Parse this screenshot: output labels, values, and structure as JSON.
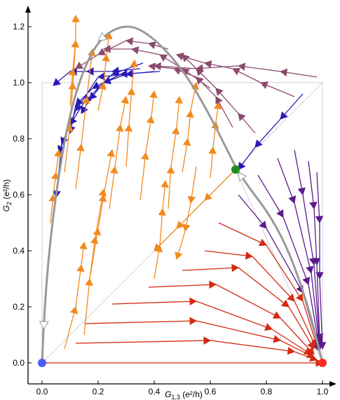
{
  "chart_data": {
    "type": "line",
    "subtype": "flow-diagram",
    "title": "",
    "xlabel": {
      "main": "G",
      "sub": "1,3",
      "unit": " (e²/h)"
    },
    "ylabel": {
      "main": "G",
      "sub": "2",
      "unit": " (e²/h)"
    },
    "xlim": [
      -0.05,
      1.05
    ],
    "ylim": [
      -0.04,
      1.29
    ],
    "x_ticks": [
      0.0,
      0.2,
      0.4,
      0.6,
      0.8,
      1.0
    ],
    "y_ticks": [
      0.0,
      0.2,
      0.4,
      0.6,
      0.8,
      1.0,
      1.2
    ],
    "x_tick_labels": [
      "0.0",
      "0.2",
      "0.4",
      "0.6",
      "0.8",
      "1.0"
    ],
    "y_tick_labels": [
      "0.0",
      "0.2",
      "0.4",
      "0.6",
      "0.8",
      "1.0",
      "1.2"
    ],
    "grid": false,
    "colors": {
      "orange": "#f28a1e",
      "red": "#d42a12",
      "purple": "#5c1a8c",
      "mauve": "#8c4a6e",
      "blue": "#2a1ab4",
      "gray_curve": "#999999",
      "box": "#d0d0d0",
      "blue_point": "#4d5cff",
      "green_point": "#1e8c1e",
      "red_point": "#ff2a2a"
    },
    "fixed_points": [
      {
        "name": "blue",
        "x": 0.0,
        "y": 0.0,
        "color": "#4d5cff"
      },
      {
        "name": "green",
        "x": 0.69,
        "y": 0.69,
        "color": "#1e8c1e"
      },
      {
        "name": "red",
        "x": 1.0,
        "y": 0.0,
        "color": "#ff2a2a"
      }
    ],
    "reference_box": {
      "x": [
        0.0,
        1.0
      ],
      "y": [
        0.0,
        1.0
      ]
    },
    "diagonals": [
      {
        "x": [
          0.0,
          1.0
        ],
        "y": [
          0.0,
          1.0
        ]
      },
      {
        "x": [
          1.0,
          0.69
        ],
        "y": [
          0.0,
          0.69
        ]
      }
    ],
    "separatrix": {
      "x": [
        1.0,
        0.985,
        0.96,
        0.92,
        0.87,
        0.81,
        0.75,
        0.7,
        0.66,
        0.6,
        0.52,
        0.43,
        0.34,
        0.27,
        0.2,
        0.14,
        0.09,
        0.05,
        0.02,
        0.005,
        0.0
      ],
      "y": [
        0.0,
        0.06,
        0.16,
        0.29,
        0.42,
        0.53,
        0.61,
        0.68,
        0.76,
        0.88,
        1.02,
        1.13,
        1.2,
        1.2,
        1.15,
        1.03,
        0.85,
        0.61,
        0.35,
        0.12,
        0.0
      ]
    },
    "series": [
      {
        "color": "red",
        "x": [
          0.0,
          1.0
        ],
        "y": [
          0.0,
          0.0
        ]
      },
      {
        "color": "red",
        "x": [
          0.12,
          0.6,
          0.9,
          0.98
        ],
        "y": [
          0.07,
          0.08,
          0.04,
          0.01
        ]
      },
      {
        "color": "red",
        "x": [
          0.15,
          0.55,
          0.85,
          0.97
        ],
        "y": [
          0.14,
          0.15,
          0.08,
          0.02
        ]
      },
      {
        "color": "red",
        "x": [
          0.25,
          0.55,
          0.82,
          0.96
        ],
        "y": [
          0.21,
          0.22,
          0.12,
          0.03
        ]
      },
      {
        "color": "red",
        "x": [
          0.38,
          0.62,
          0.85,
          0.97
        ],
        "y": [
          0.27,
          0.28,
          0.16,
          0.03
        ]
      },
      {
        "color": "red",
        "x": [
          0.5,
          0.7,
          0.88,
          0.97
        ],
        "y": [
          0.33,
          0.34,
          0.2,
          0.05
        ]
      },
      {
        "color": "red",
        "x": [
          0.58,
          0.75,
          0.9,
          0.98
        ],
        "y": [
          0.4,
          0.38,
          0.22,
          0.05
        ]
      },
      {
        "color": "red",
        "x": [
          0.63,
          0.8,
          0.93,
          0.98
        ],
        "y": [
          0.5,
          0.42,
          0.22,
          0.06
        ]
      },
      {
        "color": "purple",
        "x": [
          0.7,
          0.8,
          0.93,
          0.99
        ],
        "y": [
          0.6,
          0.48,
          0.25,
          0.04
        ]
      },
      {
        "color": "purple",
        "x": [
          0.77,
          0.86,
          0.95,
          0.99
        ],
        "y": [
          0.67,
          0.52,
          0.28,
          0.05
        ]
      },
      {
        "color": "purple",
        "x": [
          0.84,
          0.9,
          0.96,
          0.99
        ],
        "y": [
          0.73,
          0.57,
          0.32,
          0.06
        ]
      },
      {
        "color": "purple",
        "x": [
          0.9,
          0.93,
          0.97,
          0.99
        ],
        "y": [
          0.76,
          0.6,
          0.35,
          0.07
        ]
      },
      {
        "color": "purple",
        "x": [
          0.95,
          0.97,
          0.98,
          0.99
        ],
        "y": [
          0.72,
          0.55,
          0.35,
          0.08
        ]
      },
      {
        "color": "purple",
        "x": [
          0.98,
          0.99,
          0.99,
          1.0
        ],
        "y": [
          0.68,
          0.5,
          0.3,
          0.05
        ]
      },
      {
        "color": "blue",
        "x": [
          0.93,
          0.85,
          0.76,
          0.7
        ],
        "y": [
          0.96,
          0.87,
          0.77,
          0.69
        ]
      },
      {
        "color": "blue",
        "x": [
          0.36,
          0.25,
          0.15,
          0.1,
          0.06
        ],
        "y": [
          1.07,
          1.03,
          0.93,
          0.85,
          0.75
        ]
      },
      {
        "color": "blue",
        "x": [
          0.42,
          0.28,
          0.18,
          0.12,
          0.1
        ],
        "y": [
          1.04,
          1.03,
          0.98,
          0.92,
          0.82
        ]
      },
      {
        "color": "blue",
        "x": [
          0.3,
          0.2,
          0.12,
          0.07,
          0.05
        ],
        "y": [
          1.03,
          1.02,
          0.9,
          0.78,
          0.59
        ]
      },
      {
        "color": "blue",
        "x": [
          0.4,
          0.3,
          0.22,
          0.17,
          0.14
        ],
        "y": [
          1.04,
          1.03,
          1.0,
          0.94,
          0.89
        ]
      },
      {
        "color": "blue",
        "x": [
          0.35,
          0.25,
          0.16,
          0.1,
          0.04
        ],
        "y": [
          1.05,
          1.04,
          1.04,
          1.04,
          0.99
        ]
      },
      {
        "color": "orange",
        "x": [
          0.08,
          0.12,
          0.14,
          0.15
        ],
        "y": [
          0.05,
          0.2,
          0.35,
          0.43
        ]
      },
      {
        "color": "orange",
        "x": [
          0.15,
          0.17,
          0.19,
          0.22
        ],
        "y": [
          0.1,
          0.3,
          0.45,
          0.62
        ]
      },
      {
        "color": "orange",
        "x": [
          0.17,
          0.2,
          0.22,
          0.25
        ],
        "y": [
          0.3,
          0.48,
          0.6,
          0.76
        ]
      },
      {
        "color": "orange",
        "x": [
          0.24,
          0.26,
          0.28,
          0.3
        ],
        "y": [
          0.55,
          0.7,
          0.85,
          0.95
        ]
      },
      {
        "color": "orange",
        "x": [
          0.35,
          0.37,
          0.39,
          0.4
        ],
        "y": [
          0.58,
          0.75,
          0.88,
          0.97
        ]
      },
      {
        "color": "orange",
        "x": [
          0.45,
          0.46,
          0.48,
          0.49
        ],
        "y": [
          0.55,
          0.7,
          0.84,
          0.95
        ]
      },
      {
        "color": "orange",
        "x": [
          0.5,
          0.52,
          0.53,
          0.55
        ],
        "y": [
          0.68,
          0.8,
          0.9,
          1.0
        ]
      },
      {
        "color": "orange",
        "x": [
          0.6,
          0.61,
          0.62,
          0.63
        ],
        "y": [
          0.66,
          0.77,
          0.86,
          0.93
        ]
      },
      {
        "color": "orange",
        "x": [
          0.08,
          0.1,
          0.11,
          0.12
        ],
        "y": [
          0.68,
          0.85,
          1.0,
          1.15
        ]
      },
      {
        "color": "orange",
        "x": [
          0.12,
          0.14,
          0.16,
          0.18
        ],
        "y": [
          0.62,
          0.78,
          0.95,
          1.12
        ]
      },
      {
        "color": "orange",
        "x": [
          0.3,
          0.31,
          0.32,
          0.33
        ],
        "y": [
          0.7,
          0.85,
          0.98,
          1.08
        ]
      },
      {
        "color": "orange",
        "x": [
          0.2,
          0.22,
          0.23,
          0.24
        ],
        "y": [
          0.9,
          1.0,
          1.1,
          1.18
        ]
      },
      {
        "color": "orange",
        "x": [
          0.1,
          0.11,
          0.12,
          0.12
        ],
        "y": [
          0.92,
          1.05,
          1.15,
          1.24
        ]
      },
      {
        "color": "orange",
        "x": [
          0.03,
          0.04,
          0.05,
          0.06
        ],
        "y": [
          0.5,
          0.6,
          0.68,
          0.76
        ]
      },
      {
        "color": "orange",
        "x": [
          0.55,
          0.53,
          0.51,
          0.48
        ],
        "y": [
          0.7,
          0.57,
          0.47,
          0.37
        ]
      },
      {
        "color": "orange",
        "x": [
          0.4,
          0.42,
          0.43,
          0.44
        ],
        "y": [
          0.3,
          0.42,
          0.55,
          0.65
        ]
      },
      {
        "color": "orange",
        "x": [
          0.68,
          0.58,
          0.48,
          0.4
        ],
        "y": [
          0.68,
          0.58,
          0.48,
          0.4
        ]
      },
      {
        "color": "mauve",
        "x": [
          0.98,
          0.85,
          0.7,
          0.55,
          0.4
        ],
        "y": [
          1.02,
          1.04,
          1.06,
          1.05,
          1.06
        ]
      },
      {
        "color": "mauve",
        "x": [
          0.9,
          0.78,
          0.68,
          0.58,
          0.48
        ],
        "y": [
          0.95,
          1.0,
          1.05,
          1.07,
          1.1
        ]
      },
      {
        "color": "mauve",
        "x": [
          0.76,
          0.7,
          0.62,
          0.55,
          0.5
        ],
        "y": [
          0.82,
          0.89,
          0.98,
          1.05,
          1.1
        ]
      },
      {
        "color": "mauve",
        "x": [
          0.68,
          0.62,
          0.55,
          0.47,
          0.38
        ],
        "y": [
          0.84,
          0.95,
          1.02,
          1.05,
          1.06
        ]
      },
      {
        "color": "mauve",
        "x": [
          0.6,
          0.5,
          0.42,
          0.32,
          0.22
        ],
        "y": [
          0.98,
          1.05,
          1.1,
          1.12,
          1.12
        ]
      },
      {
        "color": "mauve",
        "x": [
          0.45,
          0.38,
          0.3,
          0.2,
          0.12
        ],
        "y": [
          1.12,
          1.14,
          1.15,
          1.1,
          1.05
        ]
      }
    ]
  }
}
